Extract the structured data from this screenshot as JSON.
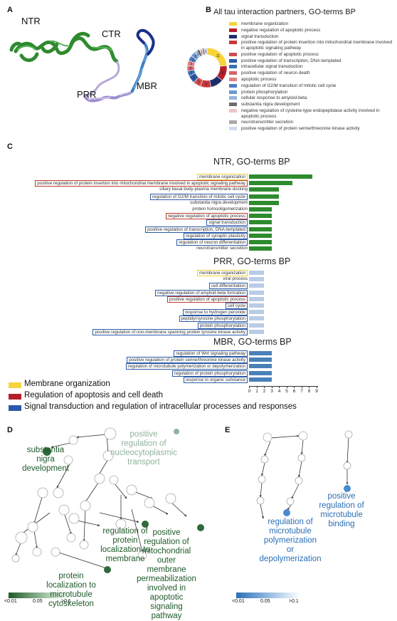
{
  "panels": {
    "A": "A",
    "B": "B",
    "C": "C",
    "D": "D",
    "E": "E"
  },
  "panelA": {
    "labels": {
      "ntr": "NTR",
      "ctr": "CTR",
      "prr": "PRR",
      "mbr": "MBR"
    }
  },
  "panelB": {
    "title": "All tau interaction partners, GO-terms BP",
    "donut_values": [
      "11",
      "6",
      "5",
      "4",
      "3",
      "3",
      "2",
      "2",
      "2",
      "2",
      "2",
      "1",
      "1",
      "1",
      "1",
      "1"
    ],
    "legend": [
      {
        "label": "membrane organization",
        "color": "#f7d43a"
      },
      {
        "label": "negative regulation of apoptotic process",
        "color": "#b41f2a"
      },
      {
        "label": "signal transduction",
        "color": "#1c2f6b"
      },
      {
        "label": "positive regulation of protein insertion into mitochondrial membrane involved in apoptotic signaling pathway",
        "color": "#c8363a"
      },
      {
        "label": "positive regulation of apoptotic process",
        "color": "#d04c4f"
      },
      {
        "label": "positive regulation of transcription, DNA-templated",
        "color": "#2a5aa8"
      },
      {
        "label": "intracellular signal transduction",
        "color": "#3b6fb5"
      },
      {
        "label": "positive regulation of neuron death",
        "color": "#d86468"
      },
      {
        "label": "apoptotic process",
        "color": "#e08084"
      },
      {
        "label": "regulation of G2/M transition of mitotic cell cycle",
        "color": "#4a80c2"
      },
      {
        "label": "protein phosphorylation",
        "color": "#6e9acf"
      },
      {
        "label": "cellular response to amyloid-beta",
        "color": "#95b6dc"
      },
      {
        "label": "substantia nigra development",
        "color": "#6b6b6b"
      },
      {
        "label": "negative regulation of cysteine-type endopeptidase activity involved in apoptotic process",
        "color": "#f0c4c6"
      },
      {
        "label": "neurotransmitter secretion",
        "color": "#a9a9a9"
      },
      {
        "label": "positive regulation of protein serine/threonine kinase activity",
        "color": "#cfdcee"
      }
    ]
  },
  "panelC": {
    "x_ticks": [
      "0",
      "1",
      "2",
      "3",
      "4",
      "5",
      "6",
      "7",
      "8",
      "9"
    ],
    "legend": [
      {
        "label": "Membrane organization",
        "color": "#f7d43a"
      },
      {
        "label": "Regulation of apoptosis and cell death",
        "color": "#b41f2a"
      },
      {
        "label": "Signal transduction and regulation of intracellular processes and responses",
        "color": "#2a5aa8"
      }
    ]
  },
  "chart_data": [
    {
      "type": "bar",
      "title": "NTR, GO-terms BP",
      "bar_color": "#2e8b2e",
      "categories": [
        "membrane organization",
        "positive regulation of protein insertion into mitochondrial membrane involved in apoptotic signaling pathway",
        "ciliary basal body-plasma membrane docking",
        "regulation of G2/M transition of mitotic cell cycle",
        "substantia nigra development",
        "protein homooligomerization",
        "negative regulation of apoptotic process",
        "signal transduction",
        "positive regulation of transcription, DNA-templated",
        "regulation of synaptic plasticity",
        "regulation of neuron differentiation",
        "neurotransmitter secretion"
      ],
      "values": [
        8.5,
        5.8,
        4,
        4,
        4,
        3,
        3,
        3,
        3,
        3,
        3,
        3
      ],
      "box": [
        "yellow",
        "red",
        "none",
        "blue",
        "none",
        "none",
        "red",
        "blue",
        "blue",
        "blue",
        "blue",
        "none"
      ],
      "xlim": [
        0,
        9
      ]
    },
    {
      "type": "bar",
      "title": "PRR, GO-terms BP",
      "bar_color": "#b9cce6",
      "categories": [
        "membrane organization",
        "viral process",
        "cell differentiation",
        "negative regulation of amyloid-beta formation",
        "positive regulation of apoptotic process",
        "cell cycle",
        "response to hydrogen peroxide",
        "peptidyl-tyrosine phosphorylation",
        "protein phosphorylation",
        "positive regulation of non-membrane spanning protein tyrosine kinase activity"
      ],
      "values": [
        2,
        2,
        2,
        2,
        2,
        2,
        2,
        2,
        2,
        2
      ],
      "box": [
        "yellow",
        "none",
        "blue",
        "blue",
        "red",
        "blue",
        "blue",
        "blue",
        "blue",
        "blue"
      ],
      "xlim": [
        0,
        9
      ]
    },
    {
      "type": "bar",
      "title": "MBR, GO-terms BP",
      "bar_color": "#4a80b8",
      "categories": [
        "regulation of Wnt signaling pathway",
        "positive regulation of protein serine/threonine kinase activity",
        "regulation of microtubule polymerization or depolymerization",
        "regulation of protein phosphorylation",
        "response to organic substance"
      ],
      "values": [
        3,
        3,
        3,
        3,
        3
      ],
      "box": [
        "blue",
        "blue",
        "blue",
        "blue",
        "blue"
      ],
      "xlim": [
        0,
        9
      ]
    }
  ],
  "panelD": {
    "highlight_labels": [
      {
        "text": "substantia\nnigra\ndevelopment",
        "color": "#1e5a2a"
      },
      {
        "text": "positive\nregulation of\nnucleocytoplasmic\ntransport",
        "color": "#8fb39a"
      },
      {
        "text": "regulation of\nprotein\nlocalization to\nmembrane",
        "color": "#1e5a2a"
      },
      {
        "text": "positive\nregulation of\nmitochondrial\nouter\nmembrane\npermeabilization\ninvolved in\napoptotic\nsignaling\npathway",
        "color": "#1e5a2a"
      },
      {
        "text": "protein\nlocalization to\nmicrotubule\ncytoskeleton",
        "color": "#1e5a2a"
      }
    ],
    "scale": [
      "<0.01",
      "0.05",
      ">0.1"
    ]
  },
  "panelE": {
    "highlight_labels": [
      {
        "text": "positive\nregulation of\nmicrotubule\nbinding",
        "color": "#2a6fb5"
      },
      {
        "text": "regulation of\nmicrotubule\npolymerization\nor\ndepolymerization",
        "color": "#2a6fb5"
      }
    ],
    "scale": [
      "<0.01",
      "0.05",
      ">0.1"
    ]
  }
}
